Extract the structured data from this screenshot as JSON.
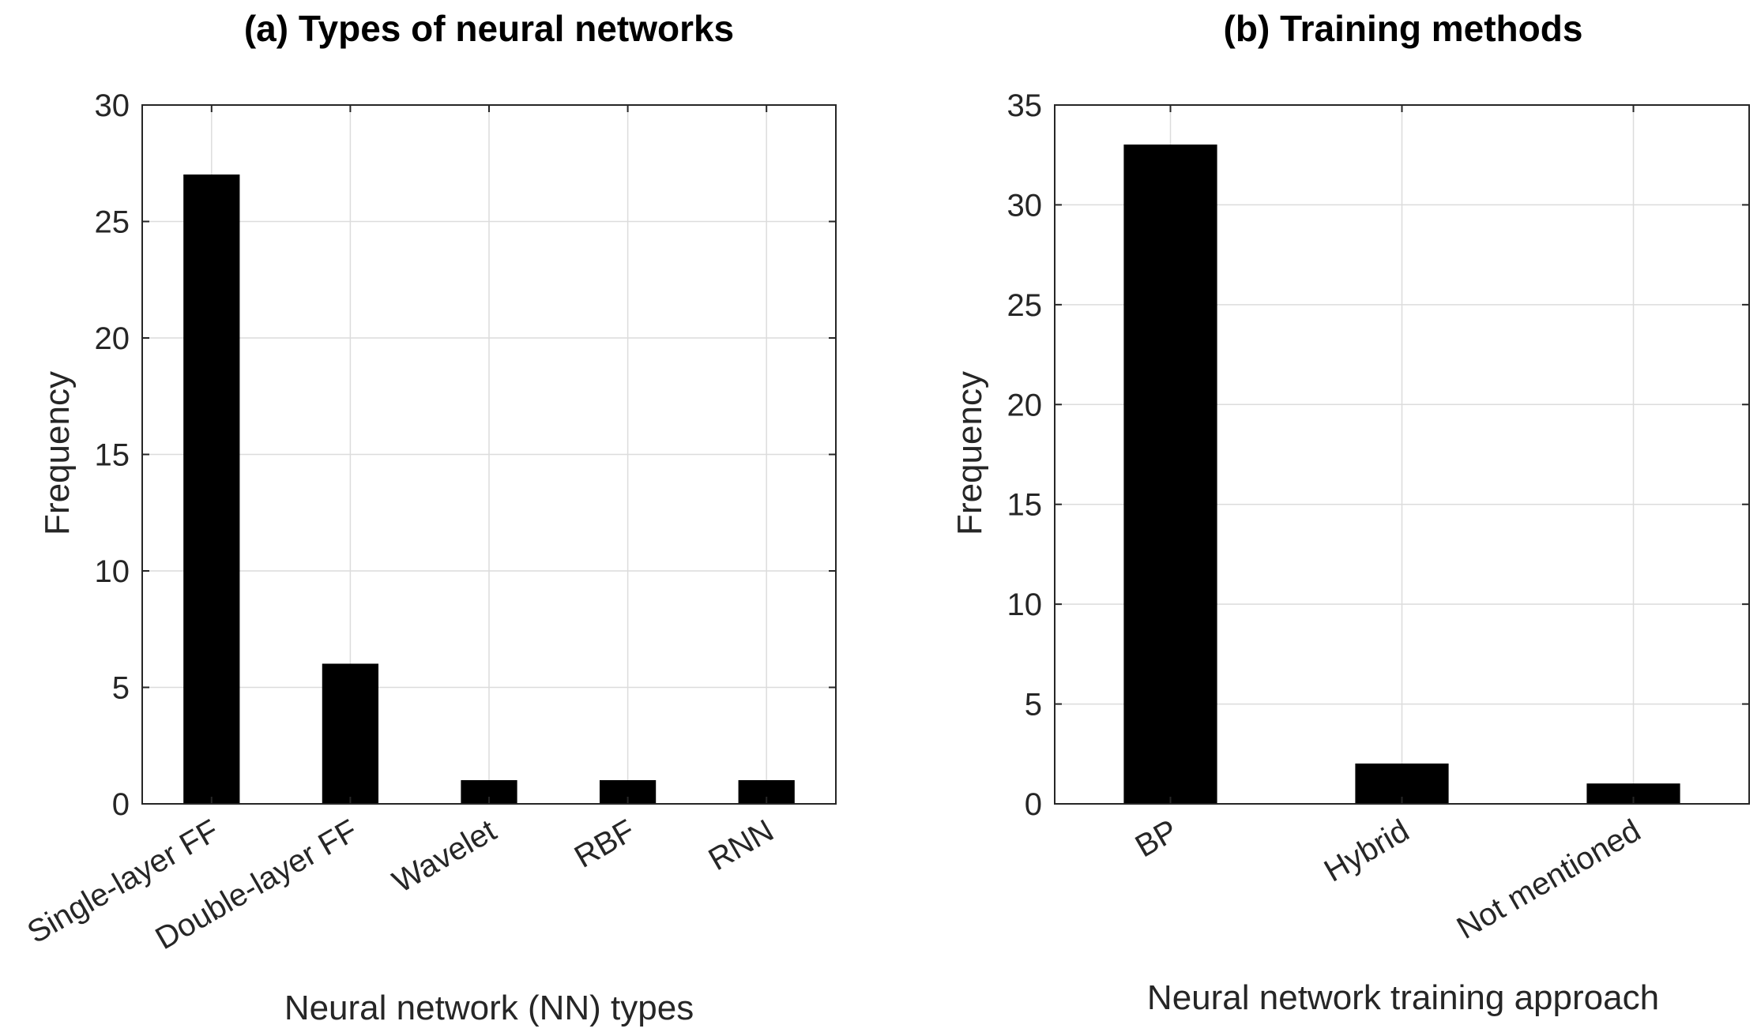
{
  "chart_data": [
    {
      "type": "bar",
      "title": "(a) Types of neural networks",
      "xlabel": "Neural network (NN) types",
      "ylabel": "Frequency",
      "categories": [
        "Single-layer FF",
        "Double-layer FF",
        "Wavelet",
        "RBF",
        "RNN"
      ],
      "values": [
        27,
        6,
        1,
        1,
        1
      ],
      "ylim": [
        0,
        30
      ],
      "yticks": [
        0,
        5,
        10,
        15,
        20,
        25,
        30
      ],
      "grid": true,
      "bar_color": "#000000"
    },
    {
      "type": "bar",
      "title": "(b) Training methods",
      "xlabel": "Neural network training approach",
      "ylabel": "Frequency",
      "categories": [
        "BP",
        "Hybrid",
        "Not mentioned"
      ],
      "values": [
        33,
        2,
        1
      ],
      "ylim": [
        0,
        35
      ],
      "yticks": [
        0,
        5,
        10,
        15,
        20,
        25,
        30,
        35
      ],
      "grid": true,
      "bar_color": "#000000"
    }
  ]
}
